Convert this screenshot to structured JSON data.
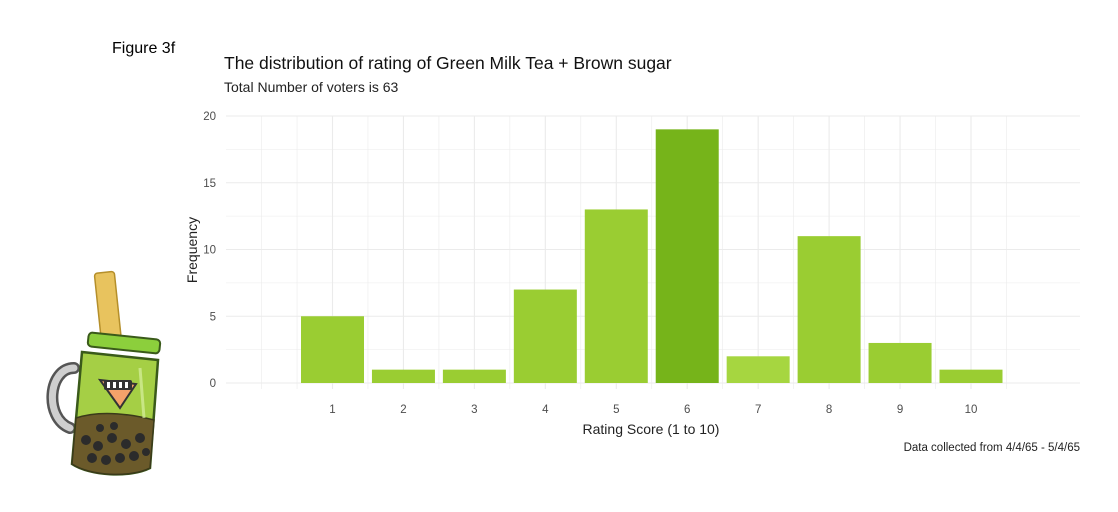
{
  "figure_label": "Figure 3f",
  "caption": "Data collected from 4/4/65 - 5/4/65",
  "colors": {
    "bar_default": "#9acd32",
    "bar_highlight": "#76b41a",
    "bar_light": "#a6d640",
    "grid": "#ebebeb",
    "text_axis": "#4d4d4d"
  },
  "chart_data": {
    "type": "bar",
    "title": "The distribution of rating of Green Milk Tea + Brown sugar",
    "subtitle": "Total Number of voters is 63",
    "xlabel": "Rating Score (1 to 10)",
    "ylabel": "Frequency",
    "categories": [
      "1",
      "2",
      "3",
      "4",
      "5",
      "6",
      "7",
      "8",
      "9",
      "10"
    ],
    "values": [
      5,
      1,
      1,
      7,
      13,
      19,
      2,
      11,
      3,
      1
    ],
    "ylim": [
      0,
      20
    ],
    "yticks": [
      0,
      5,
      10,
      15,
      20
    ],
    "grid": true,
    "legend": "none"
  }
}
